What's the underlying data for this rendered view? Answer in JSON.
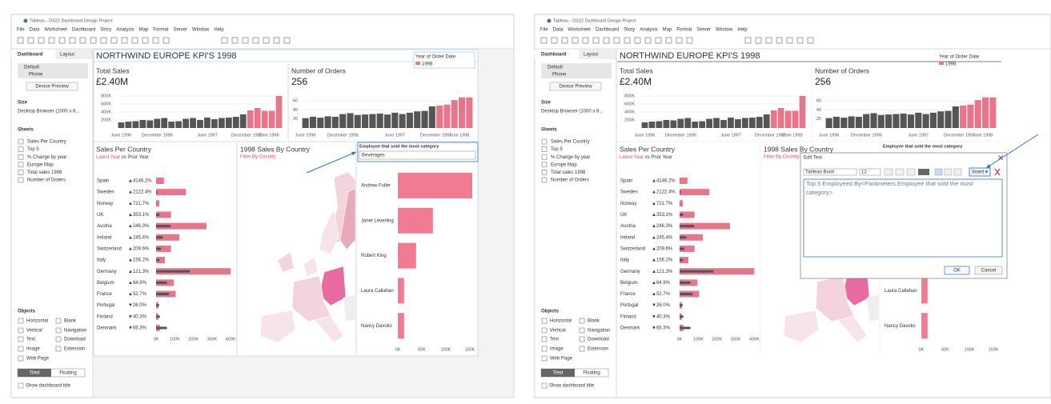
{
  "app": {
    "title": "Tableau - DS22 Dashboard Design Project",
    "menu": [
      "File",
      "Data",
      "Worksheet",
      "Dashboard",
      "Story",
      "Analysis",
      "Map",
      "Format",
      "Server",
      "Window",
      "Help"
    ],
    "pane": {
      "tabs": [
        "Dashboard",
        "Layout"
      ],
      "devices": [
        "Default",
        "Phone"
      ],
      "device_preview": "Device Preview",
      "size_label": "Size",
      "size_value": "Desktop Browser (1000 x 8...",
      "sheets_label": "Sheets",
      "sheets": [
        "Sales Per Country",
        "Top 5",
        "% Change by year",
        "Europe Map",
        "Total sales 1998",
        "Number of Orders"
      ],
      "objects_label": "Objects",
      "objects": [
        "Horizontal",
        "Blank",
        "Vertical",
        "Navigation",
        "Text",
        "Download",
        "Image",
        "Extension",
        "Web Page"
      ],
      "layout_modes": [
        "Tiled",
        "Floating"
      ],
      "show_title": "Show dashboard title"
    }
  },
  "dashboard": {
    "title": "NORTHWIND EUROPE KPI'S 1998",
    "legend": {
      "title": "Year of Order Date",
      "items": [
        {
          "name": "1998",
          "color": "#e8758a"
        }
      ]
    },
    "total_sales": {
      "label": "Total Sales",
      "value": 2400000,
      "value_label": "£2.40M",
      "type": "bar",
      "values": [
        140000,
        160000,
        170000,
        200000,
        190000,
        230000,
        250000,
        160000,
        170000,
        230000,
        250000,
        200000,
        260000,
        220000,
        250000,
        260000,
        280000,
        340000,
        440000,
        500000,
        430000,
        430000,
        800000
      ],
      "colors": [
        "#555555",
        "#555555",
        "#555555",
        "#555555",
        "#555555",
        "#555555",
        "#555555",
        "#555555",
        "#555555",
        "#555555",
        "#555555",
        "#555555",
        "#555555",
        "#555555",
        "#555555",
        "#555555",
        "#555555",
        "#555555",
        "#e8758a",
        "#e8758a",
        "#e8758a",
        "#e8758a",
        "#e8758a"
      ],
      "ylim": [
        0,
        900000
      ],
      "yticks": [
        {
          "value": 200000,
          "label": "200K"
        },
        {
          "value": 400000,
          "label": "400K"
        },
        {
          "value": 600000,
          "label": "600K"
        },
        {
          "value": 800000,
          "label": "800K"
        }
      ],
      "xlim": [
        0,
        23
      ],
      "xticks": [
        {
          "value": 0.5,
          "label": "June 1996"
        },
        {
          "value": 5.5,
          "label": "December 1996"
        },
        {
          "value": 12.5,
          "label": "June 1997"
        },
        {
          "value": 18,
          "label": "December 1997"
        },
        {
          "value": 22.5,
          "label": "June 1998"
        }
      ]
    },
    "orders": {
      "label": "Number of Orders",
      "value": 256,
      "type": "bar",
      "values": [
        22,
        25,
        23,
        26,
        25,
        31,
        33,
        29,
        30,
        31,
        32,
        30,
        34,
        31,
        34,
        37,
        38,
        48,
        50,
        52,
        62,
        68,
        68
      ],
      "colors": [
        "#555555",
        "#555555",
        "#555555",
        "#555555",
        "#555555",
        "#555555",
        "#555555",
        "#555555",
        "#555555",
        "#555555",
        "#555555",
        "#555555",
        "#555555",
        "#555555",
        "#555555",
        "#555555",
        "#555555",
        "#555555",
        "#e8758a",
        "#e8758a",
        "#e8758a",
        "#e8758a",
        "#e8758a"
      ],
      "ylim": [
        0,
        80
      ],
      "yticks": [
        20,
        40,
        60
      ],
      "xlim": [
        0,
        23
      ],
      "xticks": [
        {
          "value": 0.5,
          "label": "June 1996"
        },
        {
          "value": 5.5,
          "label": "December 1996"
        },
        {
          "value": 12.5,
          "label": "June 1997"
        },
        {
          "value": 18,
          "label": "December 1997"
        },
        {
          "value": 22.5,
          "label": "June 1998"
        }
      ]
    },
    "sales_per_country": {
      "title": "Sales Per Country",
      "subtitle": [
        "Latest Year",
        " vs Prior Year"
      ],
      "type": "bar",
      "categories": [
        "Spain",
        "Sweden",
        "Norway",
        "UK",
        "Austria",
        "Ireland",
        "Switzerland",
        "Italy",
        "Germany",
        "Belgium",
        "France",
        "Portugal",
        "Finland",
        "Denmark"
      ],
      "series": [
        {
          "color": "#e8758a",
          "values": [
            42000,
            160000,
            17000,
            80000,
            270000,
            125000,
            80000,
            47000,
            400000,
            95000,
            105000,
            12000,
            12000,
            20000
          ]
        },
        {
          "color": "#555555",
          "values": [
            1000,
            7000,
            2000,
            18000,
            78000,
            36000,
            26000,
            18000,
            181000,
            58000,
            69000,
            16000,
            20000,
            58000
          ]
        }
      ],
      "changes": {
        "values": [
          4146.2,
          2122.4,
          721.7,
          353.1,
          246.3,
          245.4,
          209.6,
          156.2,
          121.3,
          64.9,
          52.7,
          -26.0,
          -40.3,
          -65.3
        ],
        "value_labels": [
          "▲4146.2%",
          "▲2122.4%",
          "▲721.7%",
          "▲353.1%",
          "▲246.3%",
          "▲245.4%",
          "▲209.6%",
          "▲156.2%",
          "▲121.3%",
          "▲64.9%",
          "▲52.7%",
          "▼26.0%",
          "▼40.3%",
          "▼65.3%"
        ]
      },
      "xlim": [
        0,
        420000
      ],
      "xticks": [
        {
          "value": 0,
          "label": "0K"
        },
        {
          "value": 100000,
          "label": "100K"
        },
        {
          "value": 200000,
          "label": "200K"
        },
        {
          "value": 300000,
          "label": "300K"
        },
        {
          "value": 400000,
          "label": "400K"
        }
      ]
    },
    "map": {
      "title": "1998 Sales By Country",
      "subtitle": "Filter By Country"
    },
    "filter": {
      "label": "Employee that sold the most category",
      "value": "Beverages"
    },
    "top5": {
      "type": "bar",
      "color": "#f07b92",
      "categories": [
        "Andrew Fuller",
        "Janet Leverling",
        "Robert King",
        "Laura Callahan",
        "Nancy Davolio"
      ],
      "values": [
        155000,
        73000,
        38000,
        13000,
        13000
      ],
      "xlim": [
        0,
        160000
      ],
      "xticks": [
        {
          "value": 0,
          "label": "0K"
        },
        {
          "value": 50000,
          "label": "50K"
        },
        {
          "value": 100000,
          "label": "100K"
        },
        {
          "value": 150000,
          "label": "150K"
        }
      ]
    }
  },
  "dialog": {
    "title": "Edit Text",
    "font": "Tableau Book",
    "size": 12,
    "insert": "Insert ▾",
    "text_lines": [
      "Top 5 Employeed By<Parameters.Employee that sold the most",
      "category>"
    ],
    "ok": "OK",
    "cancel": "Cancel"
  }
}
